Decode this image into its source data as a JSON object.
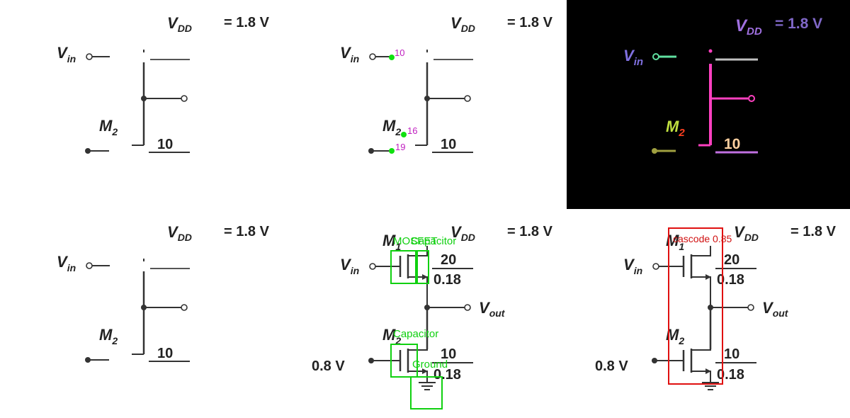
{
  "circuit": {
    "vdd_label": "V",
    "vdd_sub": "DD",
    "vdd_value": "= 1.8 V",
    "vin_label": "V",
    "vin_sub": "in",
    "vout_label": "V",
    "vout_sub": "out",
    "m1_label": "M",
    "m1_sub": "1",
    "m2_label": "M",
    "m2_sub": "2",
    "m1_w": "20",
    "m1_l": "0.18",
    "m2_w": "10",
    "m2_l": "0.18",
    "bias_label": "0.8 V"
  },
  "point_labels": [
    "10",
    "16",
    "19"
  ],
  "detections": {
    "mosfet": "MOSFET",
    "capacitor_top": "Capacitor",
    "capacitor_bottom": "Capacitor",
    "ground": "Ground"
  },
  "cascode": {
    "label": "cascode",
    "score": "0.85"
  },
  "segmentation_colors": {
    "vdd": "#a070e0",
    "vin": "#8070e0",
    "wire_vin": "#60e0a0",
    "drain": "#ff40c0",
    "m2": "#c0e040",
    "m2_sub": "#ff4020",
    "ten": "#ffd0a0",
    "gate_bar": "#a0a040",
    "top_line": "#c0c0c0",
    "bottom_line": "#c070e0"
  },
  "colors": {
    "detect_box": "#10d010",
    "cascode_box": "#e01010",
    "keypoint": "#10e010",
    "keypoint_label": "#c020c0"
  }
}
